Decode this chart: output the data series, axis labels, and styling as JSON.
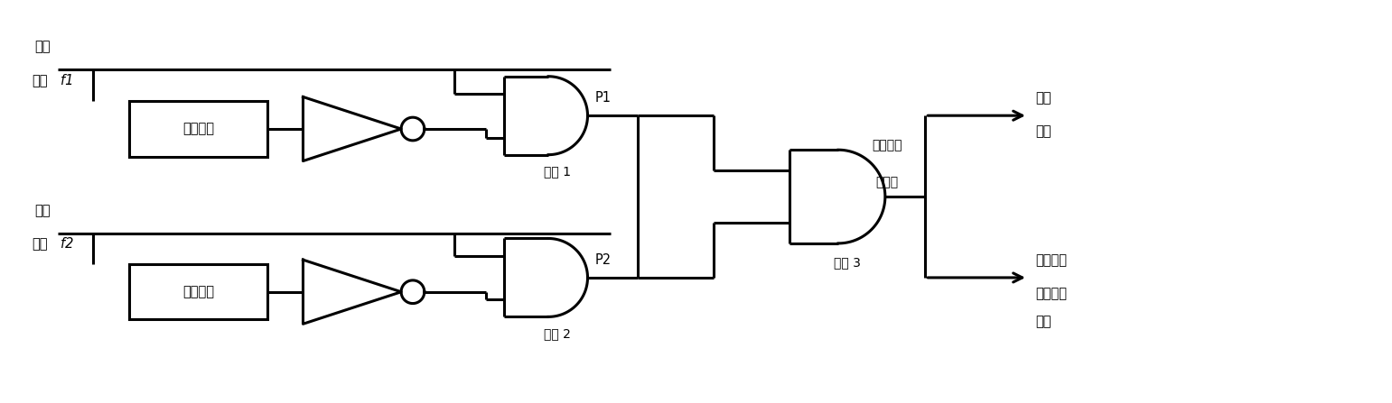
{
  "bg_color": "#ffffff",
  "line_color": "#000000",
  "line_width": 2.2,
  "fig_width": 15.41,
  "fig_height": 4.47,
  "labels": {
    "input_f1_line1": "输入",
    "input_f1_line2": "信号 f1",
    "input_f2_line1": "输入",
    "input_f2_line2": "信号 f2",
    "delay1": "可调延时",
    "delay2": "可调延时",
    "gate1_label": "与门 1",
    "gate2_label": "与门 2",
    "gate3_label": "与门 3",
    "p1": "P1",
    "p2": "P2",
    "pulse_group_line1": "相位重合",
    "pulse_group_line2": "脉冲群",
    "output1_line1": "产生",
    "output1_line2": "门时",
    "output2_line1": "相位重合",
    "output2_line2": "检测偏差",
    "output2_line3": "修正"
  }
}
